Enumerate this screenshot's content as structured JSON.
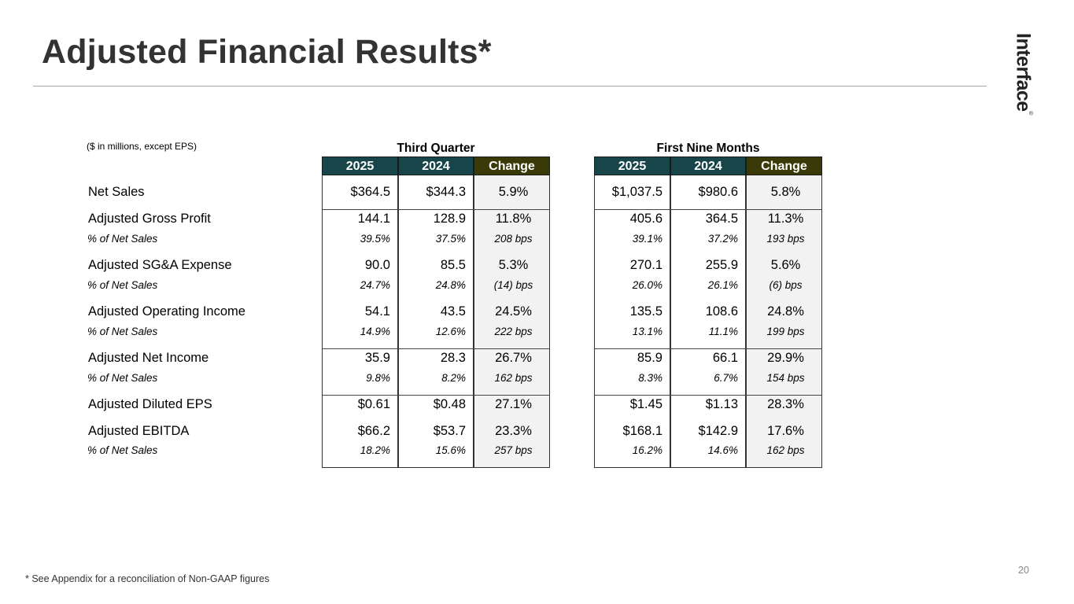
{
  "title": "Adjusted Financial Results*",
  "logo": {
    "text": "Interface",
    "mark": "®"
  },
  "units_note": "($ in millions, except EPS)",
  "rows": [
    {
      "label": "Net Sales",
      "sub": ""
    },
    {
      "label": "Adjusted Gross Profit",
      "sub": "% of Net Sales"
    },
    {
      "label": "Adjusted SG&A Expense",
      "sub": "% of Net Sales"
    },
    {
      "label": "Adjusted Operating Income",
      "sub": "% of Net Sales"
    },
    {
      "label": "Adjusted Net Income",
      "sub": "% of Net Sales"
    },
    {
      "label": "Adjusted Diluted EPS",
      "sub": ""
    },
    {
      "label": "Adjusted EBITDA",
      "sub": "% of Net Sales"
    }
  ],
  "third_quarter": {
    "title": "Third Quarter",
    "headers": [
      "2025",
      "2024",
      "Change"
    ],
    "values": [
      {
        "main": [
          "$364.5",
          "$344.3",
          "5.9%"
        ],
        "sub": [
          "",
          "",
          ""
        ]
      },
      {
        "main": [
          "144.1",
          "128.9",
          "11.8%"
        ],
        "sub": [
          "39.5%",
          "37.5%",
          "208 bps"
        ]
      },
      {
        "main": [
          "90.0",
          "85.5",
          "5.3%"
        ],
        "sub": [
          "24.7%",
          "24.8%",
          "(14) bps"
        ]
      },
      {
        "main": [
          "54.1",
          "43.5",
          "24.5%"
        ],
        "sub": [
          "14.9%",
          "12.6%",
          "222 bps"
        ]
      },
      {
        "main": [
          "35.9",
          "28.3",
          "26.7%"
        ],
        "sub": [
          "9.8%",
          "8.2%",
          "162 bps"
        ]
      },
      {
        "main": [
          "$0.61",
          "$0.48",
          "27.1%"
        ],
        "sub": [
          "",
          "",
          ""
        ]
      },
      {
        "main": [
          "$66.2",
          "$53.7",
          "23.3%"
        ],
        "sub": [
          "18.2%",
          "15.6%",
          "257 bps"
        ]
      }
    ]
  },
  "first_nine_months": {
    "title": "First Nine Months",
    "headers": [
      "2025",
      "2024",
      "Change"
    ],
    "values": [
      {
        "main": [
          "$1,037.5",
          "$980.6",
          "5.8%"
        ],
        "sub": [
          "",
          "",
          ""
        ]
      },
      {
        "main": [
          "405.6",
          "364.5",
          "11.3%"
        ],
        "sub": [
          "39.1%",
          "37.2%",
          "193 bps"
        ]
      },
      {
        "main": [
          "270.1",
          "255.9",
          "5.6%"
        ],
        "sub": [
          "26.0%",
          "26.1%",
          "(6) bps"
        ]
      },
      {
        "main": [
          "135.5",
          "108.6",
          "24.8%"
        ],
        "sub": [
          "13.1%",
          "11.1%",
          "199 bps"
        ]
      },
      {
        "main": [
          "85.9",
          "66.1",
          "29.9%"
        ],
        "sub": [
          "8.3%",
          "6.7%",
          "154 bps"
        ]
      },
      {
        "main": [
          "$1.45",
          "$1.13",
          "28.3%"
        ],
        "sub": [
          "",
          "",
          ""
        ]
      },
      {
        "main": [
          "$168.1",
          "$142.9",
          "17.6%"
        ],
        "sub": [
          "16.2%",
          "14.6%",
          "162 bps"
        ]
      }
    ]
  },
  "footnote": "* See Appendix for a reconciliation of Non-GAAP figures",
  "page_number": "20"
}
